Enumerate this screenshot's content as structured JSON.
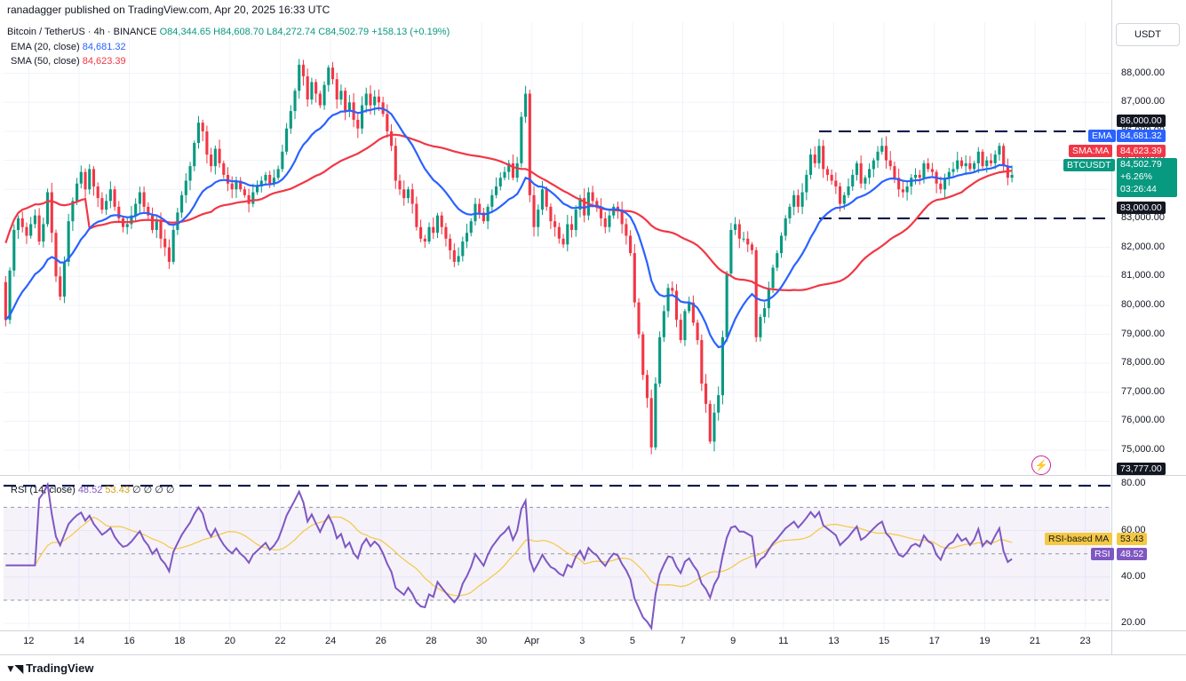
{
  "publisher": "ranadagger published on TradingView.com, Apr 20, 2025 16:33 UTC",
  "symbol": "Bitcoin / TetherUS · 4h · BINANCE",
  "ohlc": {
    "o": "O84,344.65",
    "h": "H84,608.70",
    "l": "L84,272.74",
    "c": "C84,502.79",
    "chg": "+158.13 (+0.19%)"
  },
  "ema": {
    "label": "EMA (20, close)",
    "value": "84,681.32",
    "color": "#2962ff"
  },
  "sma": {
    "label": "SMA (50, close)",
    "value": "84,623.39",
    "color": "#f23645"
  },
  "rsi": {
    "label": "RSI (14, close)",
    "value": "48.52",
    "ma_value": "53.43",
    "extra": "∅ ∅ ∅ ∅",
    "color": "#7e57c2",
    "ma_color": "#f5c842"
  },
  "currency": "USDT",
  "price_ticks": [
    "88,000.00",
    "87,000.00",
    "86,000.00",
    "85,000.00",
    "84,000.00",
    "83,000.00",
    "82,000.00",
    "81,000.00",
    "80,000.00",
    "79,000.00",
    "78,000.00",
    "77,000.00",
    "76,000.00",
    "75,000.00"
  ],
  "rsi_ticks": [
    "80.00",
    "60.00",
    "40.00",
    "20.00"
  ],
  "date_ticks": [
    "12",
    "14",
    "16",
    "18",
    "20",
    "22",
    "24",
    "26",
    "28",
    "30",
    "Apr",
    "3",
    "5",
    "7",
    "9",
    "11",
    "13",
    "15",
    "17",
    "19",
    "21",
    "23"
  ],
  "tags": {
    "ema": "EMA",
    "ema_val": "84,681.32",
    "sma": "SMA:MA",
    "sma_val": "84,623.39",
    "sym": "BTCUSDT",
    "sym_val": "84,502.79",
    "sym_pct": "+6.26%",
    "sym_time": "03:26:44",
    "level_86": "86,000.00",
    "level_83": "83,000.00",
    "level_73": "73,777.00",
    "rsi_ma": "RSI-based MA",
    "rsi_ma_val": "53.43",
    "rsi": "RSI",
    "rsi_val": "48.52"
  },
  "levels": [
    86000,
    83000,
    73777
  ],
  "footer_logo": "TradingView",
  "colors": {
    "up": "#089981",
    "down": "#f23645",
    "grid": "#f0f3fa",
    "ema": "#2962ff",
    "sma": "#f23645"
  },
  "chart_data": {
    "type": "candlestick",
    "title": "Bitcoin / TetherUS · 4h · BINANCE",
    "ylim": [
      74300,
      89000
    ],
    "rsi_ylim": [
      17,
      82
    ],
    "x_range": [
      "Mar 11 00:00",
      "Apr 24 00:00"
    ],
    "x_day_start": 11,
    "x_days_total": 44,
    "closes": [
      79500,
      81200,
      82600,
      83000,
      82700,
      82400,
      82800,
      83100,
      82200,
      82800,
      83900,
      82500,
      81000,
      80300,
      81500,
      82900,
      83600,
      84200,
      84600,
      84000,
      84700,
      84100,
      83700,
      83300,
      83600,
      84000,
      83400,
      83000,
      82700,
      82800,
      83100,
      83500,
      83900,
      83400,
      83100,
      82600,
      82900,
      82300,
      82000,
      81500,
      82600,
      83200,
      83800,
      84300,
      84800,
      85600,
      86300,
      86000,
      85200,
      84800,
      85400,
      84900,
      84500,
      84200,
      84000,
      84300,
      84000,
      83800,
      83500,
      83900,
      84100,
      84300,
      84500,
      84200,
      84400,
      84700,
      85300,
      86100,
      86700,
      87400,
      88300,
      87900,
      87100,
      87700,
      87300,
      86900,
      87600,
      88200,
      87800,
      87100,
      87400,
      86700,
      87000,
      86400,
      86100,
      86900,
      87300,
      86900,
      87200,
      87000,
      86600,
      86000,
      85500,
      84300,
      84000,
      83700,
      84000,
      83500,
      82700,
      82300,
      82200,
      82700,
      82500,
      83100,
      82700,
      82300,
      81900,
      81500,
      81700,
      82200,
      82500,
      82900,
      83500,
      83200,
      82900,
      83400,
      83800,
      84100,
      84400,
      84600,
      84900,
      84400,
      84900,
      86500,
      87300,
      83800,
      82700,
      83300,
      84000,
      83400,
      82900,
      82700,
      82300,
      82100,
      82800,
      82600,
      83300,
      83700,
      83100,
      83900,
      83600,
      83400,
      83000,
      82700,
      83100,
      83400,
      83300,
      82800,
      82400,
      81800,
      80100,
      79000,
      77600,
      76800,
      75100,
      77300,
      78900,
      79800,
      80600,
      80500,
      79500,
      78800,
      79800,
      80100,
      79400,
      78800,
      77300,
      76600,
      75300,
      76300,
      76900,
      78900,
      81100,
      82600,
      82800,
      82300,
      82300,
      82100,
      81900,
      78900,
      79600,
      79900,
      80600,
      81300,
      81800,
      82400,
      83000,
      83400,
      83800,
      83400,
      83900,
      84500,
      85200,
      84900,
      85500,
      84700,
      84500,
      84300,
      84100,
      83500,
      83800,
      84100,
      84500,
      84900,
      84200,
      84400,
      84700,
      85000,
      85300,
      85500,
      85000,
      84800,
      84400,
      84000,
      83900,
      84100,
      84400,
      84500,
      84400,
      84900,
      84700,
      84600,
      84200,
      84000,
      84400,
      84600,
      84700,
      85000,
      84800,
      84900,
      84700,
      84900,
      85300,
      84800,
      85000,
      84900,
      85200,
      85500,
      84800,
      84400,
      84500
    ]
  }
}
